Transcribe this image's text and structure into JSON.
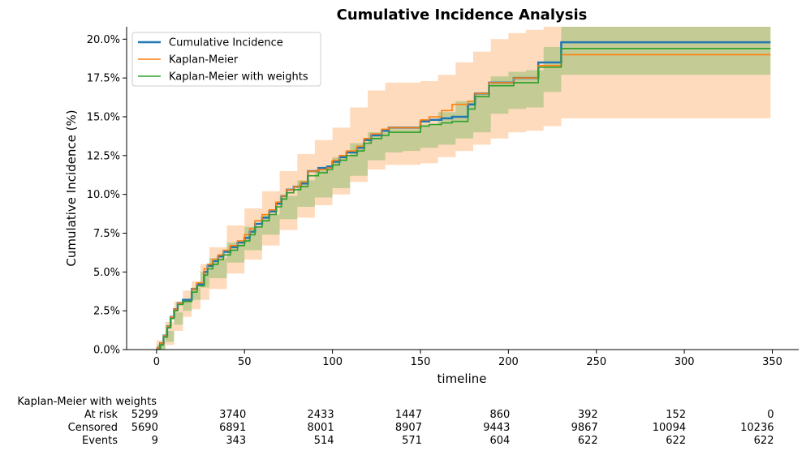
{
  "chart_data": {
    "type": "line",
    "title": "Cumulative Incidence Analysis",
    "xlabel": "timeline",
    "ylabel": "Cumulative Incidence (%)",
    "xlim": [
      -17,
      365
    ],
    "ylim": [
      0,
      20.8
    ],
    "x_ticks": [
      0,
      50,
      100,
      150,
      200,
      250,
      300,
      350
    ],
    "y_ticks": [
      0,
      2.5,
      5.0,
      7.5,
      10.0,
      12.5,
      15.0,
      17.5,
      20.0
    ],
    "y_tick_labels": [
      "0.0%",
      "2.5%",
      "5.0%",
      "7.5%",
      "10.0%",
      "12.5%",
      "15.0%",
      "17.5%",
      "20.0%"
    ],
    "legend_position": "top-left",
    "grid": false,
    "series": [
      {
        "name": "Cumulative Incidence",
        "color": "#1f77b4",
        "width": 2.5,
        "x": [
          0,
          2,
          4,
          6,
          8,
          10,
          12,
          15,
          20,
          23,
          27,
          29,
          32,
          35,
          38,
          42,
          46,
          50,
          53,
          56,
          60,
          64,
          68,
          71,
          74,
          78,
          82,
          86,
          92,
          97,
          100,
          104,
          108,
          114,
          118,
          122,
          128,
          132,
          140,
          150,
          155,
          162,
          168,
          177,
          181,
          189,
          203,
          217,
          230,
          349
        ],
        "values": [
          0.1,
          0.4,
          0.9,
          1.5,
          2.1,
          2.6,
          3.0,
          3.2,
          3.9,
          4.2,
          5.0,
          5.4,
          5.7,
          6.0,
          6.3,
          6.6,
          6.9,
          7.2,
          7.6,
          8.1,
          8.5,
          8.9,
          9.4,
          9.9,
          10.3,
          10.5,
          10.7,
          11.5,
          11.7,
          11.8,
          12.1,
          12.4,
          12.7,
          13.0,
          13.5,
          13.8,
          14.1,
          14.3,
          14.3,
          14.7,
          14.8,
          14.9,
          15.0,
          15.8,
          16.5,
          17.2,
          17.5,
          18.5,
          19.8,
          19.8
        ]
      },
      {
        "name": "Kaplan-Meier",
        "color": "#ff7f0e",
        "width": 1.6,
        "x": [
          0,
          2,
          4,
          6,
          8,
          10,
          12,
          15,
          20,
          23,
          27,
          29,
          32,
          35,
          38,
          42,
          46,
          50,
          53,
          56,
          60,
          64,
          68,
          71,
          74,
          78,
          82,
          86,
          92,
          97,
          100,
          104,
          108,
          114,
          118,
          122,
          128,
          132,
          140,
          150,
          155,
          162,
          168,
          177,
          181,
          189,
          203,
          217,
          230,
          349
        ],
        "values": [
          0.1,
          0.4,
          0.9,
          1.5,
          2.1,
          2.6,
          3.0,
          3.1,
          3.9,
          4.3,
          5.2,
          5.5,
          5.8,
          6.1,
          6.4,
          6.7,
          7.0,
          7.4,
          7.8,
          8.3,
          8.7,
          9.0,
          9.5,
          9.9,
          10.3,
          10.5,
          10.8,
          11.5,
          11.6,
          11.7,
          12.2,
          12.5,
          12.8,
          13.1,
          13.6,
          13.9,
          14.2,
          14.3,
          14.3,
          14.8,
          15.0,
          15.4,
          15.8,
          16.0,
          16.5,
          17.2,
          17.5,
          18.3,
          19.0,
          19.0
        ]
      },
      {
        "name": "Kaplan-Meier with weights",
        "color": "#2ca02c",
        "width": 1.6,
        "x": [
          0,
          2,
          4,
          6,
          8,
          10,
          12,
          15,
          20,
          23,
          27,
          29,
          32,
          35,
          38,
          42,
          46,
          50,
          53,
          56,
          60,
          64,
          68,
          71,
          74,
          78,
          82,
          86,
          92,
          97,
          100,
          104,
          108,
          114,
          118,
          122,
          128,
          132,
          140,
          150,
          155,
          162,
          168,
          177,
          181,
          189,
          203,
          217,
          230,
          349
        ],
        "values": [
          0.0,
          0.3,
          0.8,
          1.4,
          2.0,
          2.5,
          2.9,
          3.1,
          3.7,
          4.1,
          4.8,
          5.2,
          5.5,
          5.8,
          6.1,
          6.4,
          6.7,
          7.0,
          7.4,
          7.9,
          8.3,
          8.7,
          9.2,
          9.7,
          10.1,
          10.3,
          10.5,
          11.2,
          11.4,
          11.6,
          11.9,
          12.2,
          12.5,
          12.8,
          13.3,
          13.6,
          13.8,
          14.0,
          14.0,
          14.4,
          14.5,
          14.6,
          14.7,
          15.5,
          16.3,
          17.0,
          17.2,
          18.2,
          19.4,
          19.4
        ]
      }
    ],
    "confidence_bands": [
      {
        "series": "Kaplan-Meier",
        "color": "#ffbe86",
        "opacity": 0.55,
        "x": [
          0,
          5,
          10,
          15,
          20,
          25,
          30,
          40,
          50,
          60,
          70,
          80,
          90,
          100,
          110,
          120,
          130,
          140,
          150,
          160,
          170,
          180,
          190,
          200,
          210,
          220,
          230,
          349
        ],
        "lower": [
          0,
          0.3,
          1.2,
          2.1,
          2.6,
          3.2,
          3.9,
          4.9,
          5.8,
          6.7,
          7.7,
          8.5,
          9.3,
          10.0,
          10.8,
          11.6,
          11.9,
          11.9,
          12.0,
          12.4,
          12.8,
          13.2,
          13.6,
          14.0,
          14.1,
          14.4,
          14.9,
          15.4
        ],
        "upper": [
          0.6,
          1.8,
          3.1,
          3.8,
          4.4,
          5.5,
          6.6,
          8.0,
          9.1,
          10.2,
          11.5,
          12.6,
          13.5,
          14.3,
          15.6,
          16.7,
          17.2,
          17.2,
          17.3,
          17.7,
          18.5,
          19.2,
          20.0,
          20.4,
          20.6,
          20.8,
          20.8,
          20.8
        ]
      },
      {
        "series": "Kaplan-Meier with weights",
        "color": "#2ca02c",
        "opacity": 0.28,
        "x": [
          0,
          5,
          10,
          15,
          20,
          25,
          30,
          40,
          50,
          60,
          70,
          80,
          90,
          100,
          110,
          120,
          130,
          140,
          150,
          160,
          170,
          180,
          190,
          200,
          210,
          220,
          230,
          349
        ],
        "lower": [
          0,
          0.5,
          1.6,
          2.5,
          3.2,
          4.0,
          4.6,
          5.6,
          6.4,
          7.4,
          8.4,
          9.2,
          9.8,
          10.4,
          11.2,
          12.2,
          12.7,
          12.8,
          13.0,
          13.2,
          13.6,
          14.0,
          15.2,
          15.5,
          15.6,
          16.6,
          17.7,
          17.7
        ],
        "upper": [
          0.3,
          1.2,
          2.4,
          3.3,
          4.0,
          5.0,
          5.9,
          6.9,
          7.9,
          8.7,
          9.9,
          10.9,
          11.6,
          12.4,
          13.3,
          14.0,
          14.2,
          14.2,
          14.5,
          15.3,
          16.0,
          16.5,
          17.6,
          17.9,
          18.0,
          19.5,
          20.8,
          20.8
        ]
      }
    ],
    "at_risk_table": {
      "title": "Kaplan-Meier with weights",
      "rows": [
        {
          "label": "At risk",
          "values": [
            "5299",
            "3740",
            "2433",
            "1447",
            "860",
            "392",
            "152",
            "0"
          ]
        },
        {
          "label": "Censored",
          "values": [
            "5690",
            "6891",
            "8001",
            "8907",
            "9443",
            "9867",
            "10094",
            "10236"
          ]
        },
        {
          "label": "Events",
          "values": [
            "9",
            "343",
            "514",
            "571",
            "604",
            "622",
            "622",
            "622"
          ]
        }
      ]
    }
  }
}
